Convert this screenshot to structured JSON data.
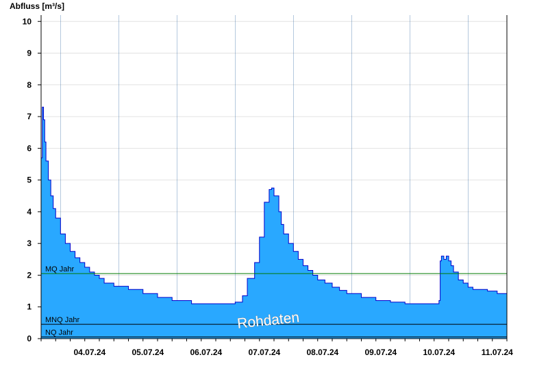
{
  "chart_data": {
    "type": "area",
    "ylabel": "Abfluss [m³/s]",
    "xlabel": "",
    "title": "",
    "ylim": [
      0,
      10.2
    ],
    "yticks": [
      0,
      1,
      2,
      3,
      4,
      5,
      6,
      7,
      8,
      9,
      10
    ],
    "grid": true,
    "xticks": [
      "04.07.24",
      "05.07.24",
      "06.07.24",
      "07.07.24",
      "08.07.24",
      "09.07.24",
      "10.07.24",
      "11.07.24"
    ],
    "x_start": "2024-07-03 16:00",
    "x_end": "2024-07-11 16:00",
    "series": [
      {
        "x": [
          "2024-07-03 16:00",
          "2024-07-03 16:30",
          "2024-07-03 17:00",
          "2024-07-03 17:30",
          "2024-07-03 18:00",
          "2024-07-03 19:00",
          "2024-07-03 20:00",
          "2024-07-03 21:00",
          "2024-07-03 22:00",
          "2024-07-04 00:00",
          "2024-07-04 02:00",
          "2024-07-04 04:00",
          "2024-07-04 06:00",
          "2024-07-04 08:00",
          "2024-07-04 10:00",
          "2024-07-04 12:00",
          "2024-07-04 14:00",
          "2024-07-04 16:00",
          "2024-07-04 18:00",
          "2024-07-04 22:00",
          "2024-07-05 04:00",
          "2024-07-05 10:00",
          "2024-07-05 16:00",
          "2024-07-05 22:00",
          "2024-07-06 06:00",
          "2024-07-06 16:00",
          "2024-07-07 00:00",
          "2024-07-07 03:00",
          "2024-07-07 05:00",
          "2024-07-07 08:00",
          "2024-07-07 10:00",
          "2024-07-07 12:00",
          "2024-07-07 14:00",
          "2024-07-07 15:00",
          "2024-07-07 16:00",
          "2024-07-07 18:00",
          "2024-07-07 19:00",
          "2024-07-07 20:00",
          "2024-07-07 22:00",
          "2024-07-08 00:00",
          "2024-07-08 02:00",
          "2024-07-08 04:00",
          "2024-07-08 06:00",
          "2024-07-08 08:00",
          "2024-07-08 10:00",
          "2024-07-08 13:00",
          "2024-07-08 16:00",
          "2024-07-08 19:00",
          "2024-07-08 22:00",
          "2024-07-09 04:00",
          "2024-07-09 10:00",
          "2024-07-09 16:00",
          "2024-07-09 22:00",
          "2024-07-10 06:00",
          "2024-07-10 12:00",
          "2024-07-10 12:30",
          "2024-07-10 13:00",
          "2024-07-10 14:00",
          "2024-07-10 15:00",
          "2024-07-10 16:00",
          "2024-07-10 17:00",
          "2024-07-10 18:00",
          "2024-07-10 20:00",
          "2024-07-10 22:00",
          "2024-07-11 00:00",
          "2024-07-11 02:00",
          "2024-07-11 08:00",
          "2024-07-11 12:00",
          "2024-07-11 16:00"
        ],
        "values": [
          5.7,
          7.3,
          6.9,
          6.2,
          5.6,
          5.0,
          4.5,
          4.1,
          3.8,
          3.3,
          3.0,
          2.75,
          2.55,
          2.4,
          2.25,
          2.1,
          2.0,
          1.9,
          1.75,
          1.65,
          1.55,
          1.42,
          1.3,
          1.2,
          1.1,
          1.1,
          1.15,
          1.35,
          1.9,
          2.4,
          3.2,
          4.3,
          4.7,
          4.75,
          4.5,
          4.0,
          3.6,
          3.3,
          3.0,
          2.75,
          2.5,
          2.3,
          2.15,
          2.0,
          1.85,
          1.75,
          1.62,
          1.52,
          1.42,
          1.3,
          1.2,
          1.15,
          1.1,
          1.1,
          1.2,
          2.45,
          2.6,
          2.5,
          2.6,
          2.45,
          2.3,
          2.1,
          1.85,
          1.75,
          1.62,
          1.55,
          1.5,
          1.42,
          1.42
        ]
      }
    ],
    "reference_lines": [
      {
        "label": "MQ Jahr",
        "value": 2.05,
        "color": "#007a00"
      },
      {
        "label": "MNQ Jahr",
        "value": 0.45,
        "color": "#000000"
      },
      {
        "label": "NQ Jahr",
        "value": 0.05,
        "color": "#000000"
      }
    ],
    "fill_color": "#29a8ff",
    "line_color": "#0000cc",
    "watermark": "Rohdaten"
  }
}
